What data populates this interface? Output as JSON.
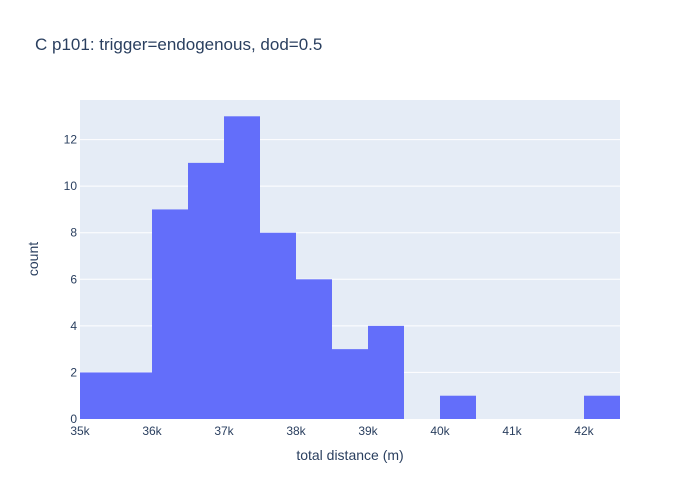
{
  "chart_data": {
    "type": "bar",
    "title": "C p101: trigger=endogenous, dod=0.5",
    "xlabel": "total distance (m)",
    "ylabel": "count",
    "bin_width": 500,
    "bins": [
      {
        "start": 35000,
        "count": 2
      },
      {
        "start": 35500,
        "count": 2
      },
      {
        "start": 36000,
        "count": 9
      },
      {
        "start": 36500,
        "count": 11
      },
      {
        "start": 37000,
        "count": 13
      },
      {
        "start": 37500,
        "count": 8
      },
      {
        "start": 38000,
        "count": 6
      },
      {
        "start": 38500,
        "count": 3
      },
      {
        "start": 39000,
        "count": 4
      },
      {
        "start": 39500,
        "count": 0
      },
      {
        "start": 40000,
        "count": 1
      },
      {
        "start": 40500,
        "count": 0
      },
      {
        "start": 41000,
        "count": 0
      },
      {
        "start": 41500,
        "count": 0
      },
      {
        "start": 42000,
        "count": 1
      }
    ],
    "xlim": [
      35000,
      42500
    ],
    "ylim": [
      0,
      13.7
    ],
    "x_ticks": [
      35000,
      36000,
      37000,
      38000,
      39000,
      40000,
      41000,
      42000
    ],
    "x_tick_labels": [
      "35k",
      "36k",
      "37k",
      "38k",
      "39k",
      "40k",
      "41k",
      "42k"
    ],
    "y_ticks": [
      0,
      2,
      4,
      6,
      8,
      10,
      12
    ],
    "y_tick_labels": [
      "0",
      "2",
      "4",
      "6",
      "8",
      "10",
      "12"
    ],
    "grid": true,
    "colors": {
      "bar": "#636efa",
      "plot_bg": "#e5ecf6",
      "grid": "#ffffff",
      "text": "#2a3f5f"
    }
  }
}
